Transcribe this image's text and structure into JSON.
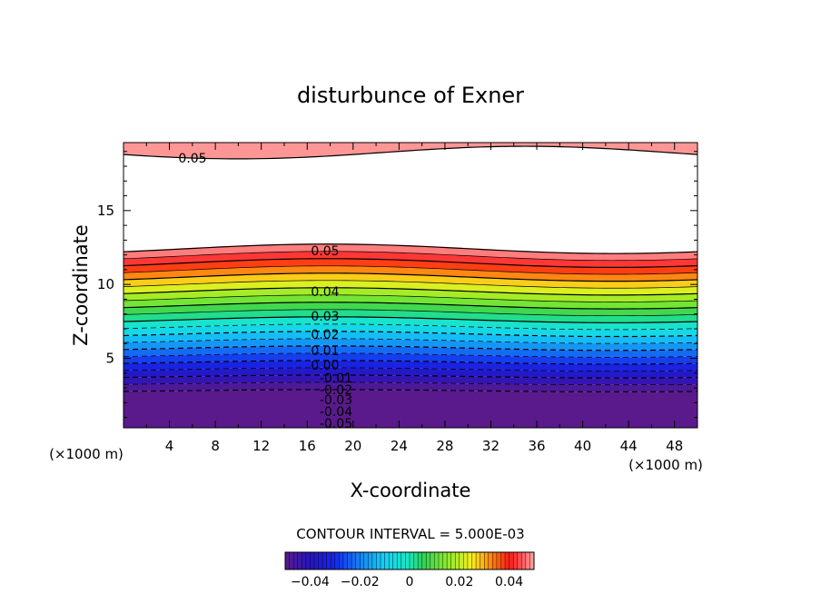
{
  "chart_data": {
    "type": "contour",
    "title": "disturbunce of Exner",
    "xlabel": "X-coordinate",
    "ylabel": "Z-coordinate",
    "x_unit": "(×1000 m)",
    "y_unit": "(×1000 m)",
    "xlim": [
      0,
      50
    ],
    "ylim": [
      0.3,
      19.6
    ],
    "x_ticks": [
      4,
      8,
      12,
      16,
      20,
      24,
      28,
      32,
      36,
      40,
      44,
      48
    ],
    "y_ticks": [
      5,
      10,
      15
    ],
    "contour_interval_label": "CONTOUR INTERVAL = 5.000E-03",
    "contour_levels": [
      -0.05,
      -0.045,
      -0.04,
      -0.035,
      -0.03,
      -0.025,
      -0.02,
      -0.015,
      -0.01,
      -0.005,
      0,
      0.005,
      0.01,
      0.015,
      0.02,
      0.025,
      0.03,
      0.035,
      0.04,
      0.045,
      0.05
    ],
    "contour_labels": [
      "0.05",
      "0.05",
      "0.04",
      "0.03",
      "0.02",
      "0.01",
      "0.00",
      "-0.01",
      "-0.02",
      "-0.03",
      "-0.04",
      "-0.05"
    ],
    "colorbar": {
      "range": [
        -0.05,
        0.05
      ],
      "tick_labels": [
        "−0.04",
        "−0.02",
        "0",
        "0.02",
        "0.04"
      ],
      "tick_values": [
        -0.04,
        -0.02,
        0,
        0.02,
        0.04
      ]
    },
    "colors": {
      "min": "#5a1a8c",
      "zero": "#19e8c0",
      "max": "#ff9a9a",
      "background": "#ffffff"
    }
  }
}
